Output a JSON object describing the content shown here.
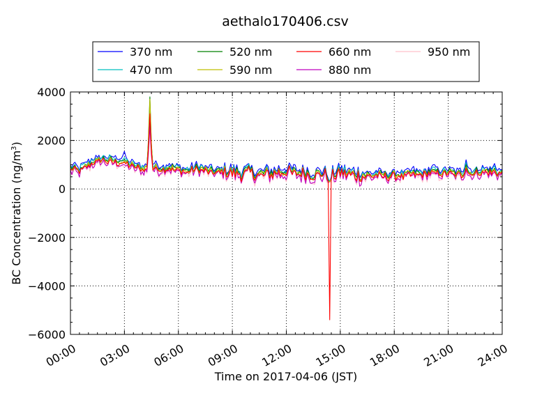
{
  "chart_data": {
    "type": "line",
    "title": "aethalo170406.csv",
    "xlabel": "Time on 2017-04-06 (JST)",
    "ylabel": "BC Concentration (ng/m",
    "ylabel_sup": "3",
    "ylabel_tail": ")",
    "x_unit": "hours",
    "xlim": [
      0.0,
      24.0
    ],
    "ylim": [
      -6000,
      4000
    ],
    "x_ticks": [
      0,
      3,
      6,
      9,
      12,
      15,
      18,
      21,
      24
    ],
    "x_tick_labels": [
      "00:00",
      "03:00",
      "06:00",
      "09:00",
      "12:00",
      "15:00",
      "18:00",
      "21:00",
      "24:00"
    ],
    "y_ticks": [
      -6000,
      -4000,
      -2000,
      0,
      2000,
      4000
    ],
    "y_tick_labels": [
      "−6000",
      "−4000",
      "−2000",
      "0",
      "2000",
      "4000"
    ],
    "grid": true,
    "grid_style": "dotted",
    "legend_position": "top-center, above plot",
    "legend_columns": 4,
    "series": [
      {
        "name": "370 nm",
        "color": "#0000ff"
      },
      {
        "name": "470 nm",
        "color": "#00bfbf"
      },
      {
        "name": "520 nm",
        "color": "#008000"
      },
      {
        "name": "590 nm",
        "color": "#bfbf00"
      },
      {
        "name": "660 nm",
        "color": "#ff0000"
      },
      {
        "name": "880 nm",
        "color": "#bf00bf"
      },
      {
        "name": "950 nm",
        "color": "#ffc0cb"
      }
    ],
    "baseline": {
      "x": [
        0.0,
        0.5,
        1.0,
        1.5,
        2.0,
        2.5,
        3.0,
        3.5,
        4.0,
        4.5,
        5.0,
        5.5,
        6.0,
        6.5,
        7.0,
        7.5,
        8.0,
        8.5,
        9.0,
        9.5,
        10.0,
        10.5,
        11.0,
        11.5,
        12.0,
        12.5,
        13.0,
        13.5,
        14.0,
        14.5,
        15.0,
        15.5,
        16.0,
        16.5,
        17.0,
        17.5,
        18.0,
        18.5,
        19.0,
        19.5,
        20.0,
        20.5,
        21.0,
        21.5,
        22.0,
        22.5,
        23.0,
        23.5,
        24.0
      ],
      "y": [
        800,
        700,
        950,
        1200,
        1150,
        1100,
        1050,
        900,
        800,
        850,
        800,
        850,
        750,
        700,
        800,
        750,
        650,
        700,
        650,
        600,
        650,
        550,
        600,
        650,
        700,
        600,
        650,
        550,
        600,
        500,
        650,
        600,
        550,
        500,
        550,
        500,
        550,
        500,
        600,
        550,
        650,
        600,
        650,
        550,
        600,
        650,
        700,
        650,
        600
      ]
    },
    "wavelength_offsets": {
      "370 nm": 180,
      "470 nm": 110,
      "520 nm": 70,
      "590 nm": 40,
      "660 nm": 0,
      "880 nm": -60,
      "950 nm": -90
    },
    "events": [
      {
        "x": 1.5,
        "values": {
          "370 nm": 1300,
          "470 nm": 1250,
          "520 nm": 1200,
          "590 nm": 1200,
          "660 nm": 1150,
          "880 nm": 1100,
          "950 nm": 1050
        }
      },
      {
        "x": 3.0,
        "values": {
          "370 nm": 1550,
          "470 nm": 1300,
          "520 nm": 1200,
          "590 nm": 1150,
          "660 nm": 1100,
          "880 nm": 1000,
          "950 nm": 900
        }
      },
      {
        "x": 4.4,
        "values": {
          "370 nm": 3000,
          "470 nm": 3300,
          "520 nm": 3800,
          "590 nm": 3700,
          "660 nm": 3100,
          "880 nm": 2600,
          "950 nm": 2400
        }
      },
      {
        "x": 14.4,
        "values": {
          "370 nm": 300,
          "470 nm": 300,
          "520 nm": 300,
          "590 nm": 300,
          "660 nm": -5400,
          "880 nm": 300,
          "950 nm": 300
        }
      },
      {
        "x": 20.2,
        "values": {
          "370 nm": 1000,
          "470 nm": 900,
          "520 nm": 800,
          "590 nm": 750,
          "660 nm": 700,
          "880 nm": 650,
          "950 nm": 600
        }
      },
      {
        "x": 22.0,
        "values": {
          "370 nm": 1200,
          "470 nm": 1100,
          "520 nm": 1000,
          "590 nm": 900,
          "660 nm": 850,
          "880 nm": 800,
          "950 nm": 750
        }
      },
      {
        "x": 23.6,
        "values": {
          "370 nm": 1050,
          "470 nm": 950,
          "520 nm": 850,
          "590 nm": 800,
          "660 nm": 750,
          "880 nm": 700,
          "950 nm": 650
        }
      }
    ],
    "noise_amplitude_ng_m3": 250,
    "sample_interval_hours": 0.0833
  }
}
